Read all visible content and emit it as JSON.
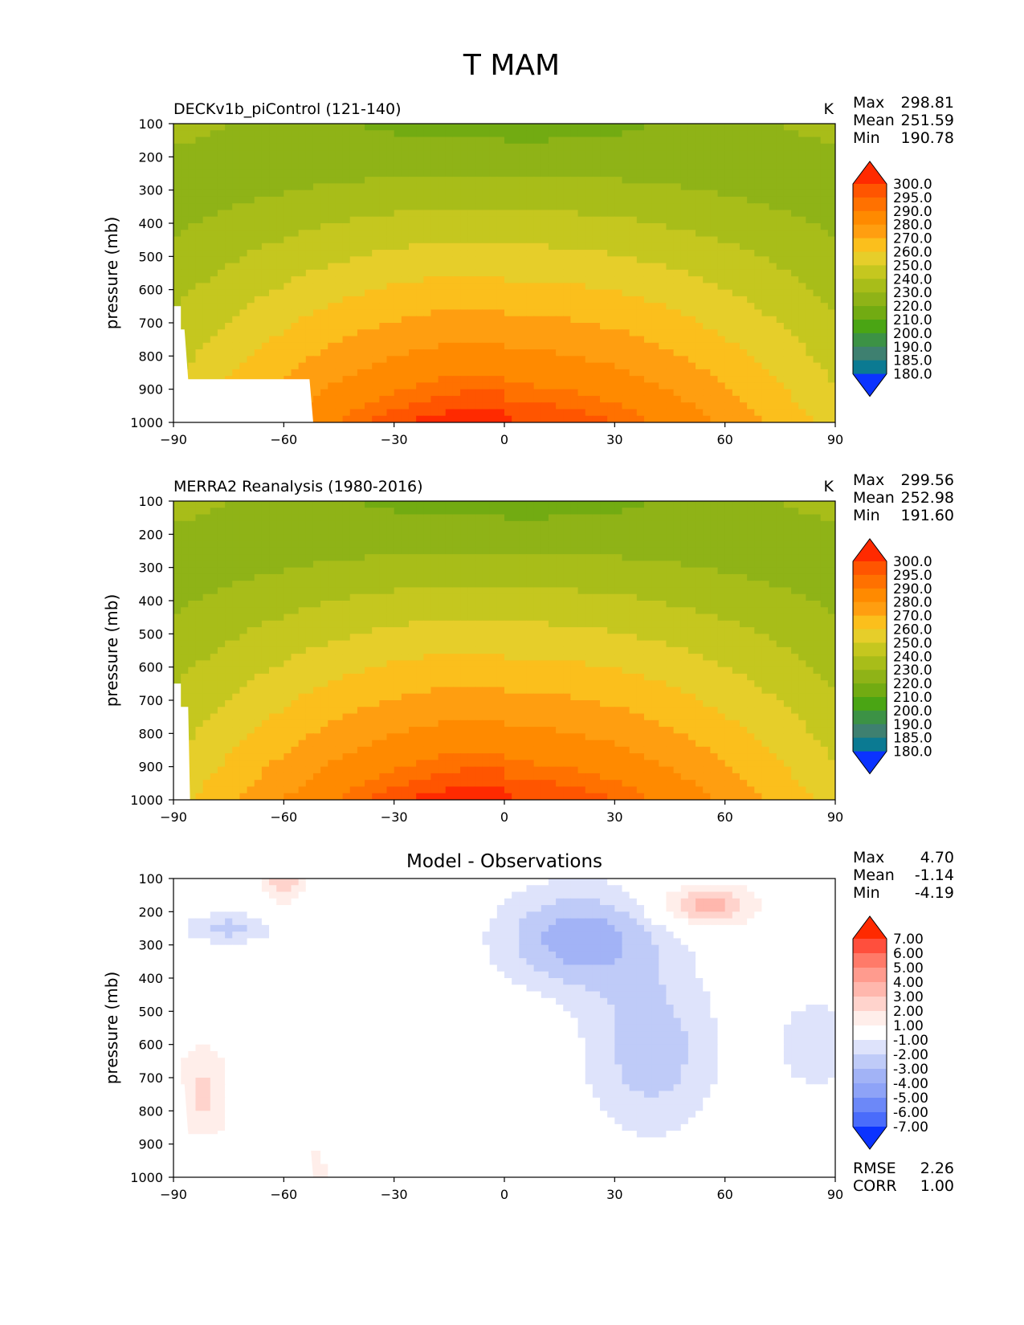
{
  "figure_title": "T MAM",
  "chart_data": [
    {
      "type": "contour",
      "title": "DECKv1b_piControl (121-140)",
      "units": "K",
      "ylabel": "pressure (mb)",
      "xlabel": "",
      "xlim": [
        -90,
        90
      ],
      "ylim": [
        1000,
        100
      ],
      "xticks": [
        "−90",
        "−60",
        "−30",
        "0",
        "30",
        "60",
        "90"
      ],
      "yticks": [
        "100",
        "200",
        "300",
        "400",
        "500",
        "600",
        "700",
        "800",
        "900",
        "1000"
      ],
      "stats": [
        {
          "label": "Max",
          "value": "298.81"
        },
        {
          "label": "Mean",
          "value": "251.59"
        },
        {
          "label": "Min",
          "value": "190.78"
        }
      ],
      "colorbar_levels": [
        "300.0",
        "295.0",
        "290.0",
        "280.0",
        "270.0",
        "260.0",
        "250.0",
        "240.0",
        "230.0",
        "220.0",
        "210.0",
        "200.0",
        "190.0",
        "185.0",
        "180.0"
      ],
      "colorbar_colors": [
        "#ff2a00",
        "#ff5500",
        "#ff7100",
        "#ff8a00",
        "#ff9e10",
        "#fbbf1c",
        "#e6ce2a",
        "#c5c71f",
        "#a8bd19",
        "#8fb317",
        "#72ab12",
        "#4aa514",
        "#3c9245",
        "#3e8070",
        "#0b7a92",
        "#0456d8",
        "#0b33ff"
      ],
      "surface_mask": true
    },
    {
      "type": "contour",
      "title": "MERRA2 Reanalysis (1980-2016)",
      "units": "K",
      "ylabel": "pressure (mb)",
      "xlabel": "",
      "xlim": [
        -90,
        90
      ],
      "ylim": [
        1000,
        100
      ],
      "xticks": [
        "−90",
        "−60",
        "−30",
        "0",
        "30",
        "60",
        "90"
      ],
      "yticks": [
        "100",
        "200",
        "300",
        "400",
        "500",
        "600",
        "700",
        "800",
        "900",
        "1000"
      ],
      "stats": [
        {
          "label": "Max",
          "value": "299.56"
        },
        {
          "label": "Mean",
          "value": "252.98"
        },
        {
          "label": "Min",
          "value": "191.60"
        }
      ],
      "colorbar_levels": [
        "300.0",
        "295.0",
        "290.0",
        "280.0",
        "270.0",
        "260.0",
        "250.0",
        "240.0",
        "230.0",
        "220.0",
        "210.0",
        "200.0",
        "190.0",
        "185.0",
        "180.0"
      ],
      "colorbar_colors": [
        "#ff2a00",
        "#ff5500",
        "#ff7100",
        "#ff8a00",
        "#ff9e10",
        "#fbbf1c",
        "#e6ce2a",
        "#c5c71f",
        "#a8bd19",
        "#8fb317",
        "#72ab12",
        "#4aa514",
        "#3c9245",
        "#3e8070",
        "#0b7a92",
        "#0456d8",
        "#0b33ff"
      ],
      "surface_mask": false
    },
    {
      "type": "contour",
      "title": "Model - Observations",
      "units": "",
      "ylabel": "pressure (mb)",
      "xlabel": "",
      "xlim": [
        -90,
        90
      ],
      "ylim": [
        1000,
        100
      ],
      "xticks": [
        "−90",
        "−60",
        "−30",
        "0",
        "30",
        "60",
        "90"
      ],
      "yticks": [
        "100",
        "200",
        "300",
        "400",
        "500",
        "600",
        "700",
        "800",
        "900",
        "1000"
      ],
      "stats": [
        {
          "label": "Max",
          "value": "4.70"
        },
        {
          "label": "Mean",
          "value": "-1.14"
        },
        {
          "label": "Min",
          "value": "-4.19"
        }
      ],
      "extra_stats": [
        {
          "label": "RMSE",
          "value": "2.26"
        },
        {
          "label": "CORR",
          "value": "1.00"
        }
      ],
      "colorbar_levels": [
        "7.00",
        "6.00",
        "5.00",
        "4.00",
        "3.00",
        "2.00",
        "1.00",
        "-1.00",
        "-2.00",
        "-3.00",
        "-4.00",
        "-5.00",
        "-6.00",
        "-7.00"
      ],
      "colorbar_colors": [
        "#ff2a00",
        "#ff4f3d",
        "#ff7a69",
        "#ff9b8e",
        "#ffb7ad",
        "#ffd3cc",
        "#ffeeea",
        "#ffffff",
        "#dee3fb",
        "#bfcbf8",
        "#a2b3f6",
        "#8ea3f7",
        "#6c88f8",
        "#4a6cfb",
        "#2849ff",
        "#0b33ff"
      ],
      "surface_mask": true
    }
  ]
}
